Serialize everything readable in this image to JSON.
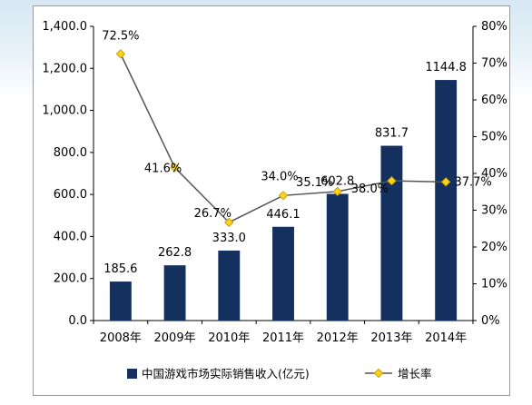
{
  "chart_data": {
    "type": "bar",
    "categories": [
      "2008年",
      "2009年",
      "2010年",
      "2011年",
      "2012年",
      "2013年",
      "2014年"
    ],
    "series": [
      {
        "name": "中国游戏市场实际销售收入(亿元)",
        "kind": "bar",
        "axis": "left",
        "values": [
          185.6,
          262.8,
          333.0,
          446.1,
          602.8,
          831.7,
          1144.8
        ],
        "labels": [
          "185.6",
          "262.8",
          "333.0",
          "446.1",
          "602.8",
          "831.7",
          "1144.8"
        ]
      },
      {
        "name": "增长率",
        "kind": "line",
        "axis": "right",
        "values": [
          72.5,
          41.6,
          26.7,
          34.0,
          35.1,
          38.0,
          37.7
        ],
        "labels": [
          "72.5%",
          "41.6%",
          "26.7%",
          "34.0%",
          "35.1%",
          "38.0%",
          "37.7%"
        ]
      }
    ],
    "y_left": {
      "lim": [
        0,
        1400
      ],
      "ticks": [
        "0.0",
        "200.0",
        "400.0",
        "600.0",
        "800.0",
        "1,000.0",
        "1,200.0",
        "1,400.0"
      ]
    },
    "y_right": {
      "lim": [
        0,
        80
      ],
      "ticks": [
        "0%",
        "10%",
        "20%",
        "30%",
        "40%",
        "50%",
        "60%",
        "70%",
        "80%"
      ]
    },
    "legend_position": "bottom",
    "grid": false,
    "colors": {
      "bar": "#13305f",
      "line": "#555555",
      "marker": "#ffd21c",
      "marker_stroke": "#c9a000"
    }
  }
}
